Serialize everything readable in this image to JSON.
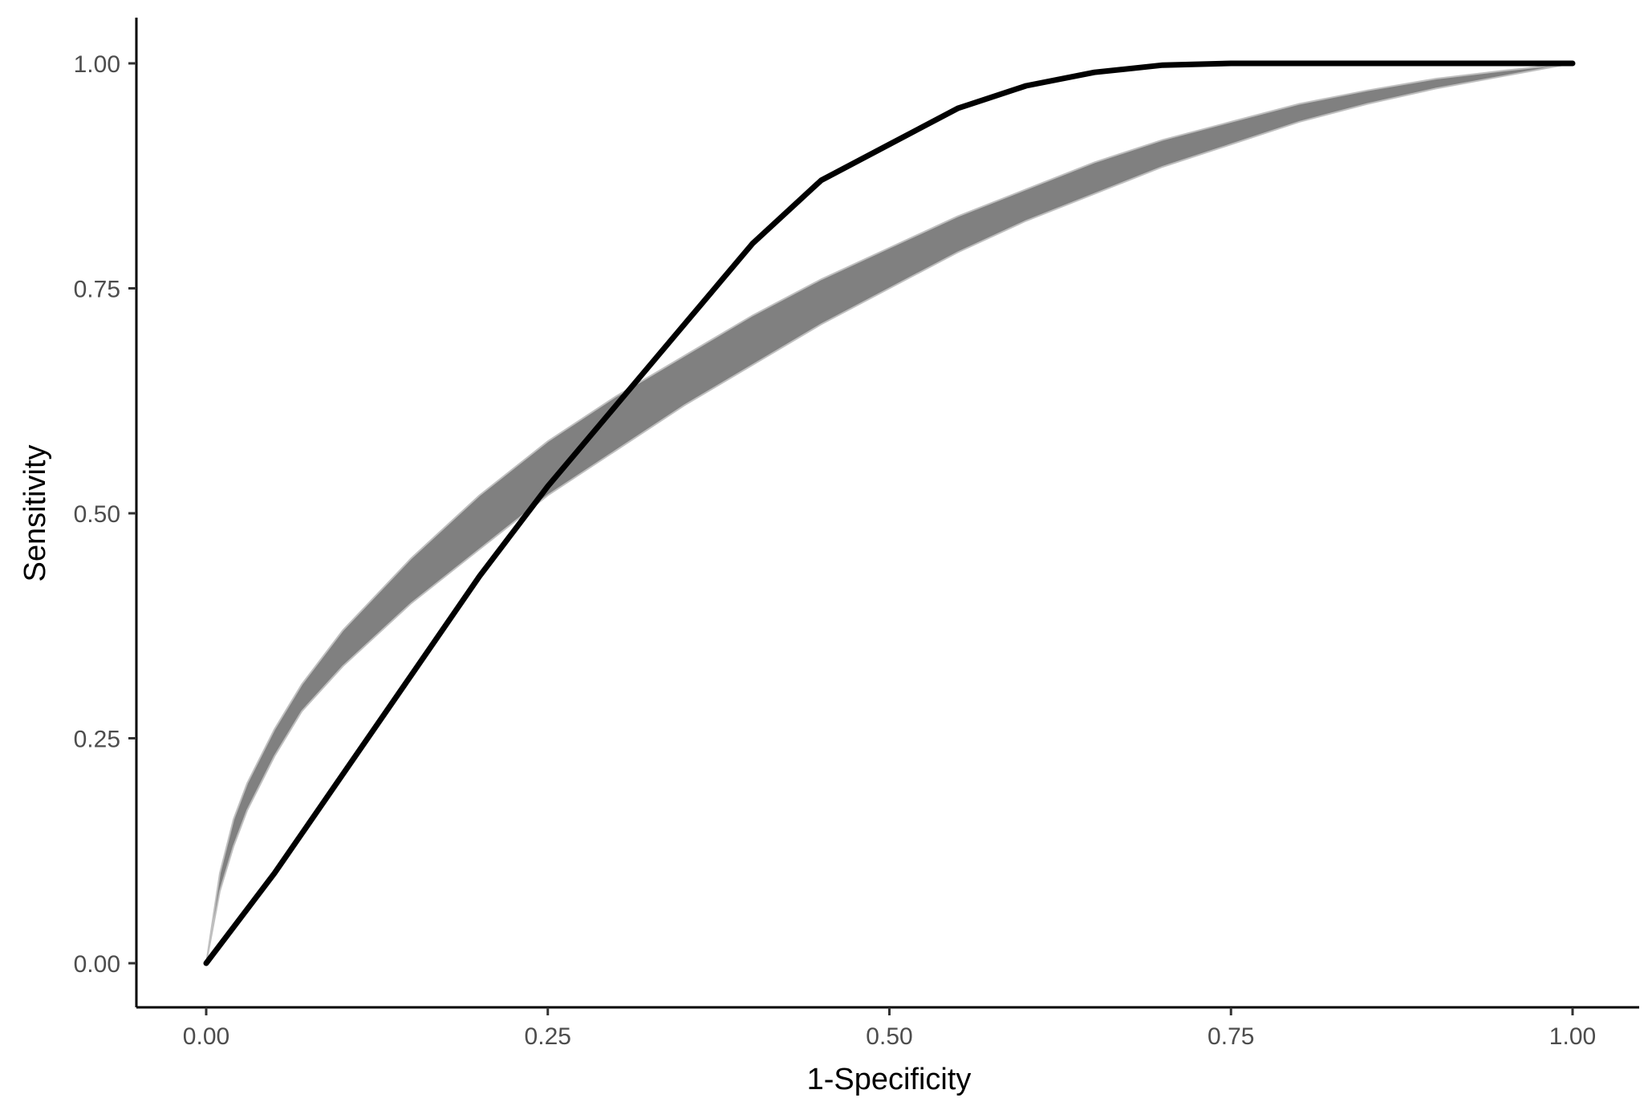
{
  "chart_data": {
    "type": "line",
    "title": "",
    "xlabel": "1-Specificity",
    "ylabel": "Sensitivity",
    "xlim": [
      0,
      1
    ],
    "ylim": [
      0,
      1
    ],
    "x_ticks": [
      "0.00",
      "0.25",
      "0.50",
      "0.75",
      "1.00"
    ],
    "y_ticks": [
      "0.00",
      "0.25",
      "0.50",
      "0.75",
      "1.00"
    ],
    "grid": false,
    "legend": "none",
    "band": {
      "color": "#808080",
      "edge_color": "#bfbfbf",
      "x": [
        0,
        0.01,
        0.02,
        0.03,
        0.05,
        0.07,
        0.1,
        0.15,
        0.2,
        0.25,
        0.3,
        0.35,
        0.4,
        0.45,
        0.5,
        0.55,
        0.6,
        0.65,
        0.7,
        0.75,
        0.8,
        0.85,
        0.9,
        0.95,
        1.0
      ],
      "lower": [
        0,
        0.08,
        0.13,
        0.17,
        0.23,
        0.28,
        0.33,
        0.4,
        0.46,
        0.52,
        0.57,
        0.62,
        0.665,
        0.71,
        0.75,
        0.79,
        0.825,
        0.855,
        0.885,
        0.91,
        0.935,
        0.955,
        0.972,
        0.986,
        1.0
      ],
      "upper": [
        0,
        0.1,
        0.16,
        0.2,
        0.26,
        0.31,
        0.37,
        0.45,
        0.52,
        0.58,
        0.63,
        0.675,
        0.72,
        0.76,
        0.795,
        0.83,
        0.86,
        0.89,
        0.915,
        0.935,
        0.955,
        0.97,
        0.983,
        0.992,
        1.0
      ]
    },
    "series": [
      {
        "color": "#000000",
        "x": [
          0,
          0.05,
          0.1,
          0.15,
          0.2,
          0.25,
          0.3,
          0.35,
          0.4,
          0.45,
          0.5,
          0.55,
          0.6,
          0.65,
          0.7,
          0.75,
          0.8,
          0.9,
          1.0
        ],
        "y": [
          0,
          0.1,
          0.21,
          0.32,
          0.43,
          0.53,
          0.62,
          0.71,
          0.8,
          0.87,
          0.91,
          0.95,
          0.975,
          0.99,
          0.998,
          1.0,
          1.0,
          1.0,
          1.0
        ]
      }
    ]
  }
}
